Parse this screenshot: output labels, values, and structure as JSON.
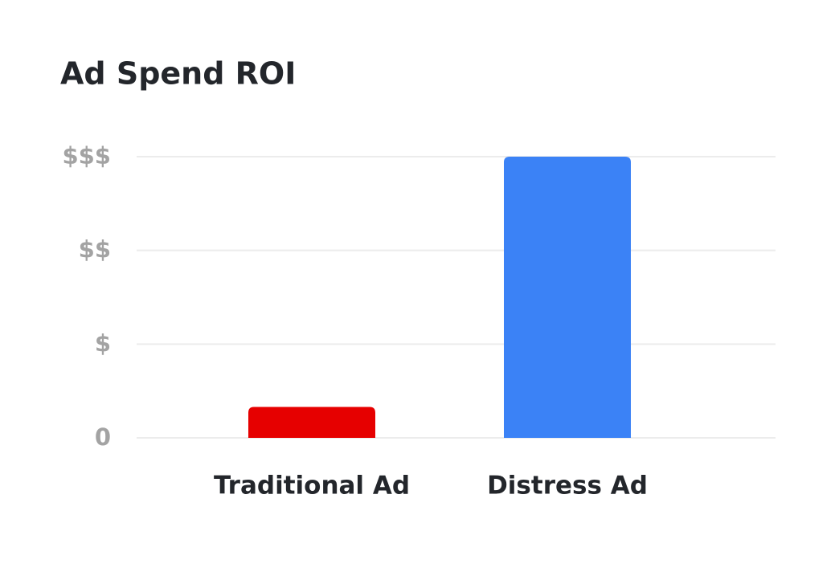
{
  "chart_data": {
    "type": "bar",
    "title": "Ad Spend ROI",
    "categories": [
      "Traditional Ad",
      "Distress Ad"
    ],
    "values": [
      0.33,
      3
    ],
    "colors": [
      "#e60000",
      "#3b82f6"
    ],
    "ylim": [
      0,
      3
    ],
    "yticks": [
      0,
      {
        "value": 1,
        "label": "$"
      },
      {
        "value": 2,
        "label": "$$"
      },
      {
        "value": 3,
        "label": "$$$"
      }
    ],
    "grid": true
  }
}
